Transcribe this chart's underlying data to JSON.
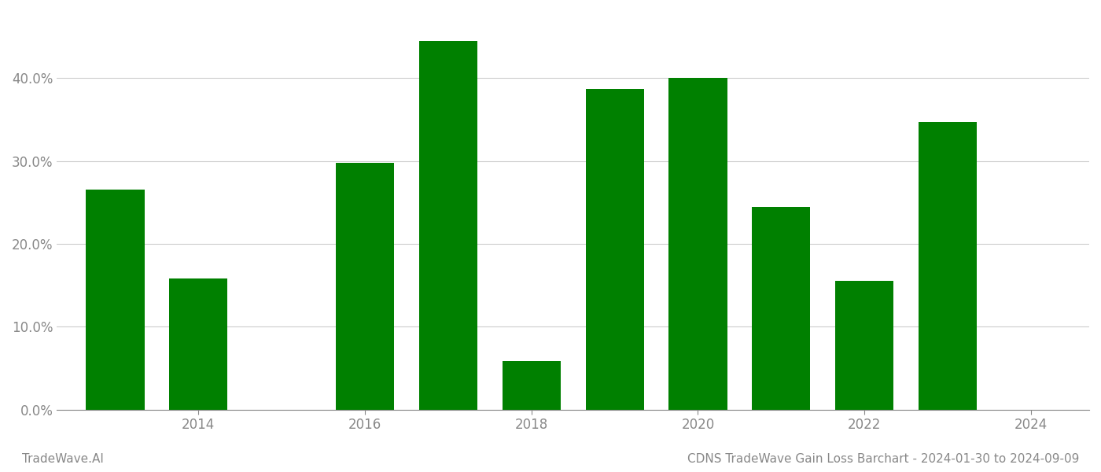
{
  "years": [
    2013,
    2014,
    2016,
    2017,
    2018,
    2019,
    2020,
    2021,
    2022,
    2023
  ],
  "values": [
    0.265,
    0.158,
    0.298,
    0.445,
    0.058,
    0.387,
    0.4,
    0.245,
    0.155,
    0.347
  ],
  "bar_color": "#008000",
  "background_color": "#ffffff",
  "title": "CDNS TradeWave Gain Loss Barchart - 2024-01-30 to 2024-09-09",
  "watermark": "TradeWave.AI",
  "ylim": [
    0,
    0.48
  ],
  "yticks": [
    0.0,
    0.1,
    0.2,
    0.3,
    0.4
  ],
  "xlim_left": 2012.3,
  "xlim_right": 2024.7,
  "xticks": [
    2014,
    2016,
    2018,
    2020,
    2022,
    2024
  ],
  "xtick_labels": [
    "2014",
    "2016",
    "2018",
    "2020",
    "2022",
    "2024"
  ],
  "grid_color": "#cccccc",
  "tick_color": "#888888",
  "title_fontsize": 11,
  "watermark_fontsize": 11,
  "bar_width": 0.7
}
